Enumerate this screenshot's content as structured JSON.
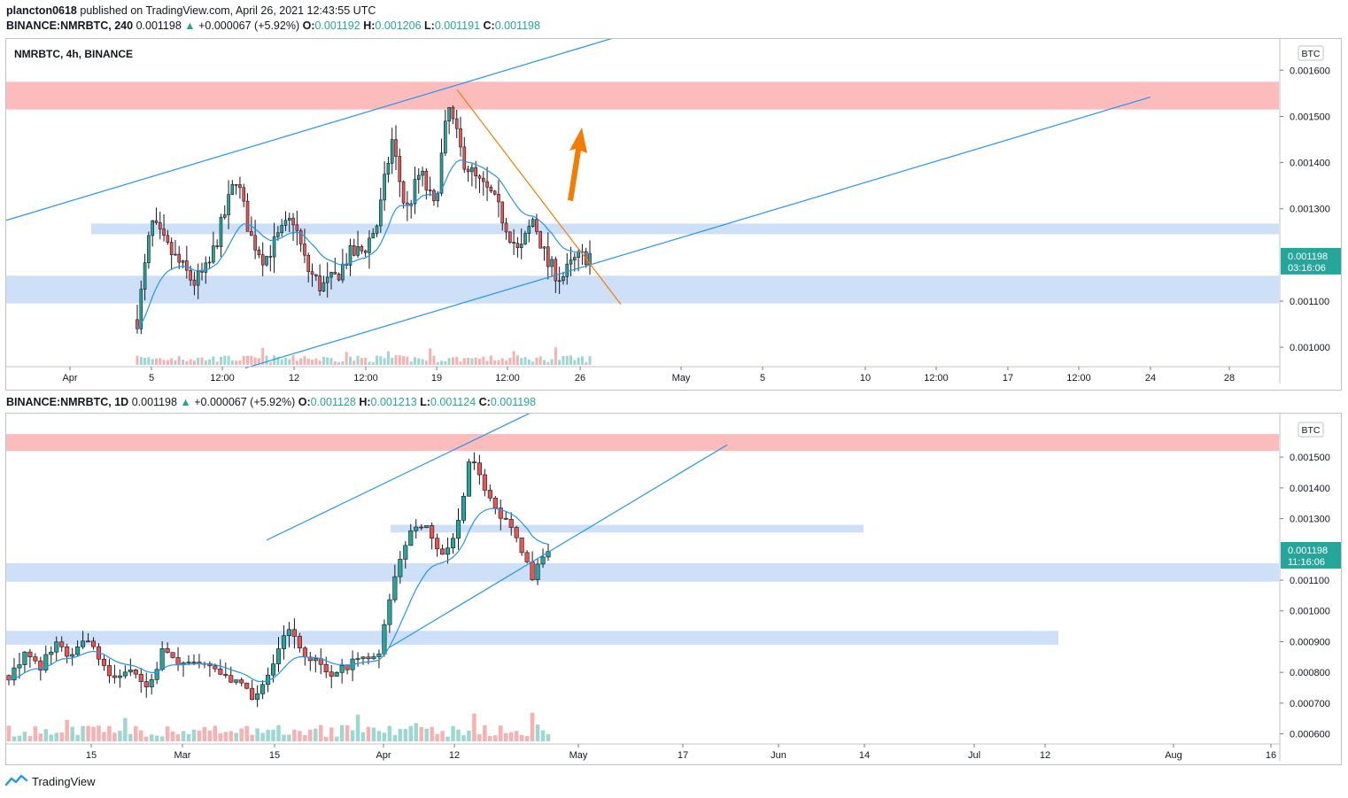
{
  "header": {
    "publisher": "plancton0618",
    "published_text": " published on TradingView.com, April 26, 2021 12:43:55 UTC"
  },
  "pane1": {
    "symbol_line": {
      "symbol": "BINANCE:NMRBTC, 240",
      "price": "0.001198",
      "arrow": "▲",
      "change": "+0.000067 (+5.92%)",
      "o_label": "O:",
      "o_value": "0.001192",
      "h_label": "H:",
      "h_value": "0.001206",
      "l_label": "L:",
      "l_value": "0.001191",
      "c_label": "C:",
      "c_value": "0.001198"
    },
    "legend": "NMRBTC, 4h, BINANCE",
    "currency_badge": "BTC",
    "price_tag": "0.001198",
    "countdown": "03:16:06"
  },
  "pane2": {
    "symbol_line": {
      "symbol": "BINANCE:NMRBTC, 1D",
      "price": "0.001198",
      "arrow": "▲",
      "change": "+0.000067 (+5.92%)",
      "o_label": "O:",
      "o_value": "0.001128",
      "h_label": "H:",
      "h_value": "0.001213",
      "l_label": "L:",
      "l_value": "0.001124",
      "c_label": "C:",
      "c_value": "0.001198"
    },
    "currency_badge": "BTC",
    "price_tag": "0.001198",
    "countdown": "11:16:06"
  },
  "footer": {
    "brand": "TradingView"
  },
  "colors": {
    "up": "#26a69a",
    "down": "#ef5350",
    "ma": "#2196f3",
    "trend": "#2196f3",
    "resistance_zone": "#fca5a5",
    "support_zone": "#c5d9f7",
    "orange": "#f57c00"
  },
  "chart_data": [
    {
      "type": "candlestick",
      "timeframe": "4h",
      "y_ticks": [
        "0.001600",
        "0.001500",
        "0.001400",
        "0.001300",
        "0.001100",
        "0.001000"
      ],
      "ylim": [
        0.00096,
        0.00166
      ],
      "x_ticks": [
        "Apr",
        "5",
        "12:00",
        "12",
        "12:00",
        "19",
        "12:00",
        "26",
        "May",
        "5",
        "10",
        "12:00",
        "17",
        "12:00",
        "24",
        "28"
      ],
      "close_path": [
        0.00106,
        0.00127,
        0.00122,
        0.00118,
        0.00114,
        0.00117,
        0.00127,
        0.00137,
        0.00124,
        0.00119,
        0.00124,
        0.00128,
        0.00117,
        0.00113,
        0.00115,
        0.0012,
        0.00121,
        0.00127,
        0.00145,
        0.00129,
        0.00138,
        0.0013,
        0.00152,
        0.00141,
        0.00136,
        0.00133,
        0.00127,
        0.0012,
        0.00128,
        0.00118,
        0.00115,
        0.00119,
        0.0012
      ],
      "zones": [
        {
          "kind": "resistance",
          "from": 0.001515,
          "to": 0.001575
        },
        {
          "kind": "support",
          "from": 0.001095,
          "to": 0.001155
        },
        {
          "kind": "blue",
          "from": 0.001245,
          "to": 0.001268
        }
      ],
      "last_price": 0.001198
    },
    {
      "type": "candlestick",
      "timeframe": "1D",
      "y_ticks": [
        "0.001500",
        "0.001400",
        "0.001300",
        "0.001100",
        "0.001000",
        "0.000900",
        "0.000800",
        "0.000700",
        "0.000600"
      ],
      "ylim": [
        0.00057,
        0.00163
      ],
      "x_ticks": [
        "15",
        "Mar",
        "15",
        "Apr",
        "12",
        "May",
        "17",
        "Jun",
        "14",
        "Jul",
        "12",
        "Aug",
        "16"
      ],
      "close_path": [
        0.00079,
        0.00086,
        0.00081,
        0.0009,
        0.00085,
        0.00093,
        0.00083,
        0.00077,
        0.0008,
        0.00074,
        0.00087,
        0.00082,
        0.00084,
        0.00081,
        0.00078,
        0.00076,
        0.00071,
        0.00081,
        0.00095,
        0.00087,
        0.00083,
        0.00079,
        0.00082,
        0.00085,
        0.00087,
        0.0011,
        0.00125,
        0.00129,
        0.00119,
        0.00124,
        0.00151,
        0.00137,
        0.0013,
        0.00124,
        0.00111,
        0.0012
      ],
      "zones": [
        {
          "kind": "resistance",
          "from": 0.00152,
          "to": 0.001575
        },
        {
          "kind": "support",
          "from": 0.001095,
          "to": 0.001155
        },
        {
          "kind": "blue",
          "from": 0.001255,
          "to": 0.00128
        },
        {
          "kind": "blue",
          "from": 0.00089,
          "to": 0.000935
        }
      ],
      "last_price": 0.001198
    }
  ]
}
